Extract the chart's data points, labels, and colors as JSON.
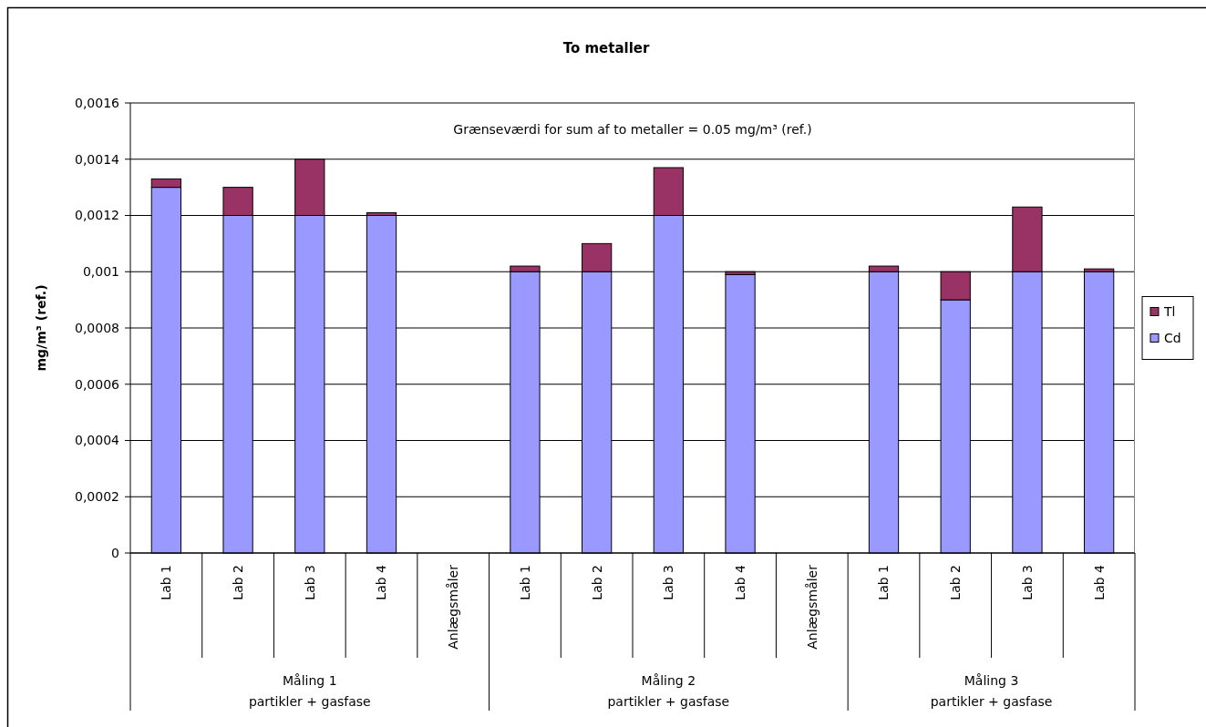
{
  "chart_data": {
    "type": "bar",
    "title": "To metaller",
    "ylabel": "mg/m³ (ref.)",
    "categories": [
      "Lab 1",
      "Lab 2",
      "Lab 3",
      "Lab 4",
      "Anlægsmåler",
      "Lab 1",
      "Lab 2",
      "Lab 3",
      "Lab 4",
      "Anlægsmåler",
      "Lab 1",
      "Lab 2",
      "Lab 3",
      "Lab 4"
    ],
    "series": [
      {
        "name": "Cd",
        "color": "#9999ff",
        "values": [
          0.0013,
          0.0012,
          0.0012,
          0.0012,
          null,
          0.001,
          0.001,
          0.0012,
          0.00099,
          null,
          0.001,
          0.0009,
          0.001,
          0.001
        ]
      },
      {
        "name": "Tl",
        "color": "#993366",
        "values": [
          3e-05,
          0.0001,
          0.0002,
          1e-05,
          null,
          2e-05,
          0.0001,
          0.00017,
          1e-05,
          null,
          2e-05,
          0.0001,
          0.00023,
          1e-05
        ]
      }
    ],
    "stacked": true,
    "ylim": [
      0,
      0.0016
    ],
    "yticks": [
      0,
      {
        "value": 0.0002,
        "label": "0,0002"
      },
      {
        "value": 0.0004,
        "label": "0,0004"
      },
      {
        "value": 0.0006,
        "label": "0,0006"
      },
      {
        "value": 0.0008,
        "label": "0,0008"
      },
      {
        "value": 0.001,
        "label": "0,001"
      },
      {
        "value": 0.0012,
        "label": "0,0012"
      },
      {
        "value": 0.0014,
        "label": "0,0014"
      },
      {
        "value": 0.0016,
        "label": "0,0016"
      }
    ],
    "grid": "y",
    "legend": "right",
    "annotations": [
      "Grænseværdi for sum af to metaller = 0.05 mg/m³ (ref.)",
      "Måling 1\npartikler + gasfase",
      "Måling 2\npartikler + gasfase",
      "Måling 3\npartikler + gasfase"
    ]
  }
}
